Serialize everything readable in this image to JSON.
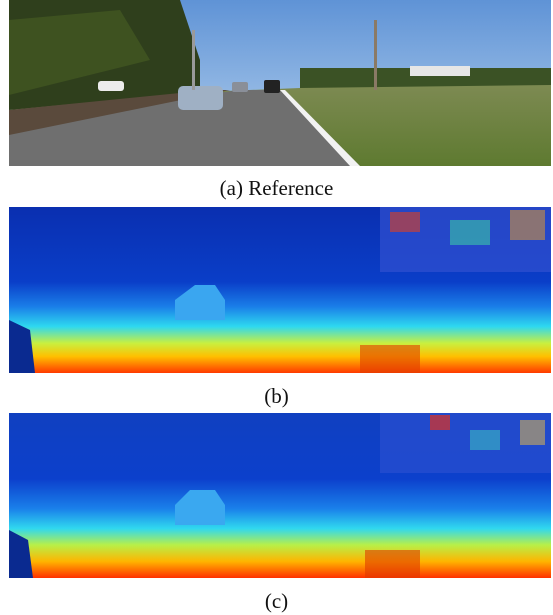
{
  "figure": {
    "panels": [
      {
        "caption": "(a) Reference"
      },
      {
        "caption": "(b)"
      },
      {
        "caption": "(c)"
      }
    ]
  }
}
